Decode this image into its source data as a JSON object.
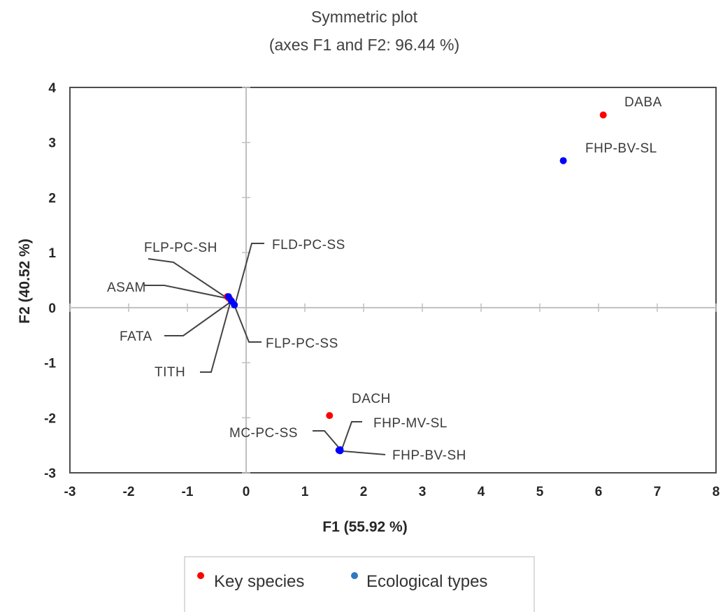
{
  "chart_data": {
    "type": "scatter",
    "title": "Symmetric plot",
    "subtitle": "(axes F1 and F2: 96.44 %)",
    "xlabel": "F1 (55.92 %)",
    "ylabel": "F2 (40.52 %)",
    "xlim": [
      -3,
      8
    ],
    "ylim": [
      -3,
      4
    ],
    "xticks": [
      "-3",
      "-2",
      "-1",
      "0",
      "1",
      "2",
      "3",
      "4",
      "5",
      "6",
      "7",
      "8"
    ],
    "yticks": [
      "4",
      "3",
      "2",
      "1",
      "0",
      "-1",
      "-2",
      "-3"
    ],
    "grid": false,
    "legend_position": "bottom",
    "series": [
      {
        "name": "Key species",
        "color": "#ff0000",
        "points": [
          {
            "label": "DABA",
            "x": 6.08,
            "y": 3.5
          },
          {
            "label": "DACH",
            "x": 1.42,
            "y": -1.96
          },
          {
            "label": "ASAM",
            "x": -0.32,
            "y": 0.2
          },
          {
            "label": "FATA",
            "x": -0.3,
            "y": 0.18
          },
          {
            "label": "TITH",
            "x": -0.28,
            "y": 0.16
          }
        ]
      },
      {
        "name": "Ecological types",
        "color": "#0000ff",
        "legend_color": "#2f78c4",
        "points": [
          {
            "label": "FHP-BV-SL",
            "x": 5.4,
            "y": 2.67
          },
          {
            "label": "FHP-MV-SL",
            "x": 1.6,
            "y": -2.58
          },
          {
            "label": "FHP-BV-SH",
            "x": 1.6,
            "y": -2.6
          },
          {
            "label": "MC-PC-SS",
            "x": 1.58,
            "y": -2.59
          },
          {
            "label": "FLP-PC-SH",
            "x": -0.3,
            "y": 0.2
          },
          {
            "label": "FLD-PC-SS",
            "x": -0.25,
            "y": 0.12
          },
          {
            "label": "FLP-PC-SS",
            "x": -0.2,
            "y": 0.05
          }
        ]
      }
    ]
  }
}
